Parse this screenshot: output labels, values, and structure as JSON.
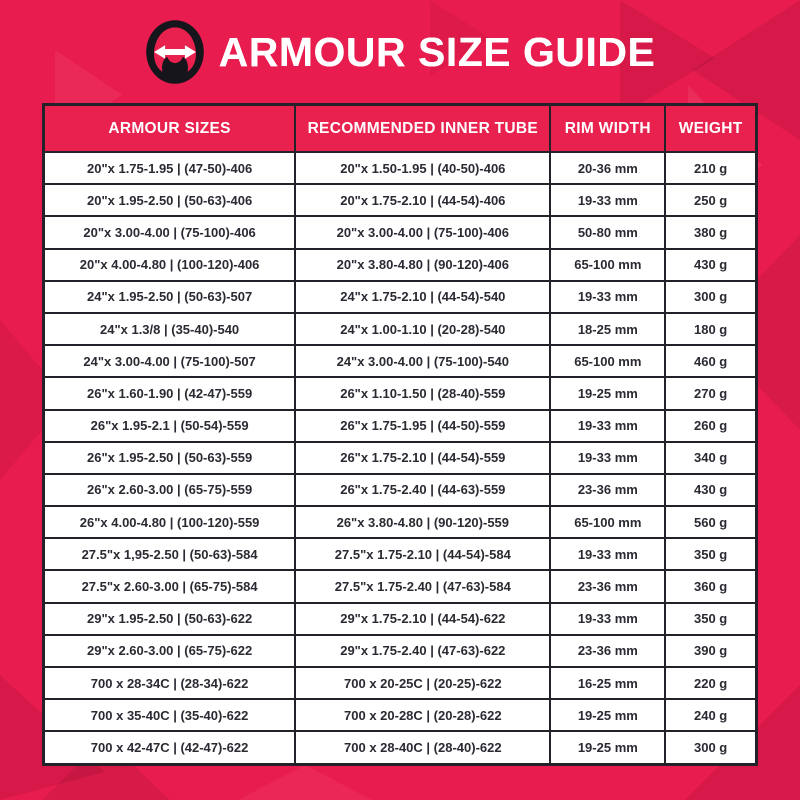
{
  "title": {
    "text": "ARMOUR SIZE GUIDE"
  },
  "colors": {
    "background": "#E91C4F",
    "header_bg": "#E8214F",
    "table_border": "#23222A",
    "cell_text": "#2B2A33",
    "title_text": "#FFFFFF",
    "logo_black": "#15151B",
    "logo_red": "#E8214F",
    "logo_arrow": "#FFFFFF"
  },
  "icons": {
    "logo": "tire-width-arrow-logo"
  },
  "table": {
    "headers": [
      "ARMOUR SIZES",
      "RECOMMENDED INNER TUBE",
      "RIM WIDTH",
      "WEIGHT"
    ],
    "rows": [
      [
        "20\"x 1.75-1.95 | (47-50)-406",
        "20\"x 1.50-1.95 | (40-50)-406",
        "20-36 mm",
        "210 g"
      ],
      [
        "20\"x 1.95-2.50 | (50-63)-406",
        "20\"x 1.75-2.10 | (44-54)-406",
        "19-33 mm",
        "250 g"
      ],
      [
        "20\"x 3.00-4.00 | (75-100)-406",
        "20\"x 3.00-4.00 | (75-100)-406",
        "50-80 mm",
        "380 g"
      ],
      [
        "20\"x 4.00-4.80 | (100-120)-406",
        "20\"x 3.80-4.80 | (90-120)-406",
        "65-100 mm",
        "430 g"
      ],
      [
        "24\"x 1.95-2.50 | (50-63)-507",
        "24\"x 1.75-2.10 | (44-54)-540",
        "19-33 mm",
        "300 g"
      ],
      [
        "24\"x 1.3/8 | (35-40)-540",
        "24\"x 1.00-1.10 | (20-28)-540",
        "18-25 mm",
        "180 g"
      ],
      [
        "24\"x 3.00-4.00 | (75-100)-507",
        "24\"x 3.00-4.00 | (75-100)-540",
        "65-100 mm",
        "460 g"
      ],
      [
        "26\"x 1.60-1.90 | (42-47)-559",
        "26\"x 1.10-1.50 | (28-40)-559",
        "19-25 mm",
        "270 g"
      ],
      [
        "26\"x 1.95-2.1 | (50-54)-559",
        "26\"x 1.75-1.95 | (44-50)-559",
        "19-33 mm",
        "260 g"
      ],
      [
        "26\"x 1.95-2.50 | (50-63)-559",
        "26\"x 1.75-2.10 | (44-54)-559",
        "19-33 mm",
        "340 g"
      ],
      [
        "26\"x 2.60-3.00 | (65-75)-559",
        "26\"x 1.75-2.40 | (44-63)-559",
        "23-36 mm",
        "430 g"
      ],
      [
        "26\"x 4.00-4.80 | (100-120)-559",
        "26\"x 3.80-4.80 | (90-120)-559",
        "65-100 mm",
        "560 g"
      ],
      [
        "27.5\"x 1,95-2.50 | (50-63)-584",
        "27.5\"x 1.75-2.10 | (44-54)-584",
        "19-33 mm",
        "350 g"
      ],
      [
        "27.5\"x 2.60-3.00 | (65-75)-584",
        "27.5\"x 1.75-2.40 | (47-63)-584",
        "23-36 mm",
        "360 g"
      ],
      [
        "29\"x 1.95-2.50 | (50-63)-622",
        "29\"x 1.75-2.10 | (44-54)-622",
        "19-33 mm",
        "350 g"
      ],
      [
        "29\"x 2.60-3.00 | (65-75)-622",
        "29\"x 1.75-2.40 | (47-63)-622",
        "23-36 mm",
        "390 g"
      ],
      [
        "700 x 28-34C | (28-34)-622",
        "700 x 20-25C | (20-25)-622",
        "16-25 mm",
        "220 g"
      ],
      [
        "700 x 35-40C | (35-40)-622",
        "700 x 20-28C | (20-28)-622",
        "19-25 mm",
        "240 g"
      ],
      [
        "700 x 42-47C | (42-47)-622",
        "700 x 28-40C | (28-40)-622",
        "19-25 mm",
        "300 g"
      ]
    ]
  }
}
